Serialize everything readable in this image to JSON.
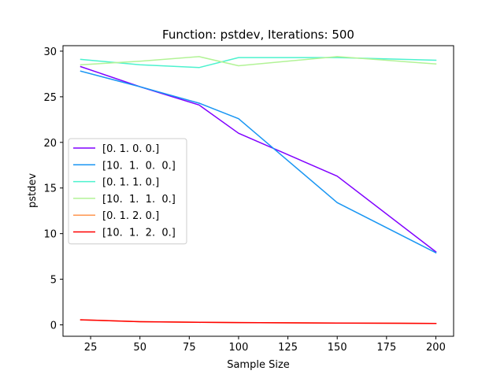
{
  "chart_data": {
    "type": "line",
    "title": "Function: pstdev, Iterations: 500",
    "xlabel": "Sample Size",
    "ylabel": "pstdev",
    "xlim": [
      11,
      209
    ],
    "ylim": [
      -1.25,
      30.6
    ],
    "xticks": [
      25,
      50,
      75,
      100,
      125,
      150,
      175,
      200
    ],
    "yticks": [
      0,
      5,
      10,
      15,
      20,
      25,
      30
    ],
    "grid": false,
    "legend_position": "center-left",
    "x": [
      20,
      50,
      80,
      100,
      150,
      200
    ],
    "series": [
      {
        "name": "[0. 1. 0. 0.]",
        "color": "#8000ff",
        "values": [
          28.3,
          26.1,
          24.1,
          21.0,
          16.3,
          8.0
        ]
      },
      {
        "name": "[10.  1.  0.  0.]",
        "color": "#1996f3",
        "values": [
          27.8,
          26.1,
          24.3,
          22.6,
          13.4,
          7.9
        ]
      },
      {
        "name": "[0. 1. 1. 0.]",
        "color": "#4cf2ce",
        "values": [
          29.1,
          28.5,
          28.2,
          29.3,
          29.3,
          29.0
        ]
      },
      {
        "name": "[10.  1.  1.  0.]",
        "color": "#b2f396",
        "values": [
          28.5,
          28.9,
          29.4,
          28.4,
          29.4,
          28.6
        ]
      },
      {
        "name": "[0. 1. 2. 0.]",
        "color": "#ff964f",
        "values": [
          0.55,
          0.35,
          0.28,
          0.25,
          0.2,
          0.16
        ]
      },
      {
        "name": "[10.  1.  2.  0.]",
        "color": "#ff0000",
        "values": [
          0.55,
          0.35,
          0.28,
          0.25,
          0.2,
          0.16
        ]
      }
    ]
  }
}
